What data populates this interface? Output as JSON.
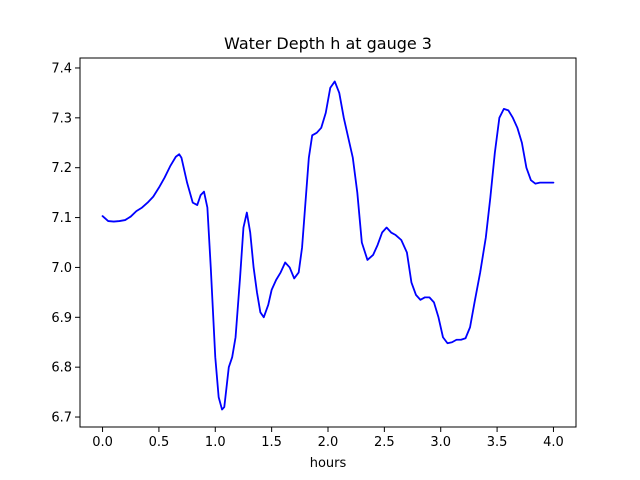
{
  "chart_data": {
    "type": "line",
    "title": "Water Depth h at gauge 3",
    "xlabel": "hours",
    "ylabel": "",
    "xlim": [
      -0.2,
      4.2
    ],
    "ylim": [
      6.68,
      7.42
    ],
    "xticks": [
      0.0,
      0.5,
      1.0,
      1.5,
      2.0,
      2.5,
      3.0,
      3.5,
      4.0
    ],
    "xtick_labels": [
      "0.0",
      "0.5",
      "1.0",
      "1.5",
      "2.0",
      "2.5",
      "3.0",
      "3.5",
      "4.0"
    ],
    "yticks": [
      6.7,
      6.8,
      6.9,
      7.0,
      7.1,
      7.2,
      7.3,
      7.4
    ],
    "ytick_labels": [
      "6.7",
      "6.8",
      "6.9",
      "7.0",
      "7.1",
      "7.2",
      "7.3",
      "7.4"
    ],
    "grid": false,
    "series": [
      {
        "color": "#0000ff",
        "x": [
          0.0,
          0.05,
          0.1,
          0.15,
          0.2,
          0.25,
          0.3,
          0.35,
          0.4,
          0.45,
          0.5,
          0.55,
          0.6,
          0.65,
          0.68,
          0.7,
          0.75,
          0.8,
          0.84,
          0.87,
          0.9,
          0.93,
          0.96,
          1.0,
          1.03,
          1.06,
          1.08,
          1.1,
          1.12,
          1.15,
          1.18,
          1.22,
          1.25,
          1.28,
          1.31,
          1.34,
          1.37,
          1.4,
          1.43,
          1.47,
          1.5,
          1.54,
          1.58,
          1.62,
          1.66,
          1.7,
          1.74,
          1.77,
          1.8,
          1.83,
          1.86,
          1.9,
          1.94,
          1.98,
          2.02,
          2.06,
          2.1,
          2.14,
          2.18,
          2.22,
          2.26,
          2.3,
          2.35,
          2.4,
          2.44,
          2.48,
          2.52,
          2.56,
          2.6,
          2.65,
          2.7,
          2.74,
          2.78,
          2.82,
          2.86,
          2.9,
          2.94,
          2.98,
          3.02,
          3.06,
          3.1,
          3.14,
          3.18,
          3.22,
          3.26,
          3.3,
          3.35,
          3.4,
          3.44,
          3.48,
          3.52,
          3.56,
          3.6,
          3.64,
          3.68,
          3.72,
          3.76,
          3.8,
          3.84,
          3.88,
          3.92,
          3.96,
          4.0
        ],
        "y": [
          7.103,
          7.093,
          7.092,
          7.093,
          7.095,
          7.102,
          7.113,
          7.12,
          7.13,
          7.142,
          7.16,
          7.18,
          7.203,
          7.222,
          7.227,
          7.22,
          7.17,
          7.13,
          7.125,
          7.145,
          7.152,
          7.12,
          7.0,
          6.82,
          6.74,
          6.715,
          6.72,
          6.76,
          6.8,
          6.82,
          6.86,
          6.98,
          7.08,
          7.11,
          7.07,
          7.0,
          6.95,
          6.91,
          6.9,
          6.925,
          6.955,
          6.975,
          6.99,
          7.01,
          7.0,
          6.978,
          6.99,
          7.04,
          7.13,
          7.22,
          7.265,
          7.27,
          7.28,
          7.31,
          7.36,
          7.373,
          7.35,
          7.3,
          7.26,
          7.22,
          7.15,
          7.05,
          7.015,
          7.025,
          7.045,
          7.07,
          7.08,
          7.07,
          7.065,
          7.055,
          7.03,
          6.97,
          6.945,
          6.935,
          6.94,
          6.94,
          6.93,
          6.9,
          6.86,
          6.848,
          6.85,
          6.855,
          6.855,
          6.858,
          6.88,
          6.93,
          6.99,
          7.06,
          7.14,
          7.23,
          7.3,
          7.318,
          7.315,
          7.3,
          7.28,
          7.25,
          7.2,
          7.175,
          7.168,
          7.17,
          7.17,
          7.17,
          7.17
        ]
      }
    ]
  }
}
